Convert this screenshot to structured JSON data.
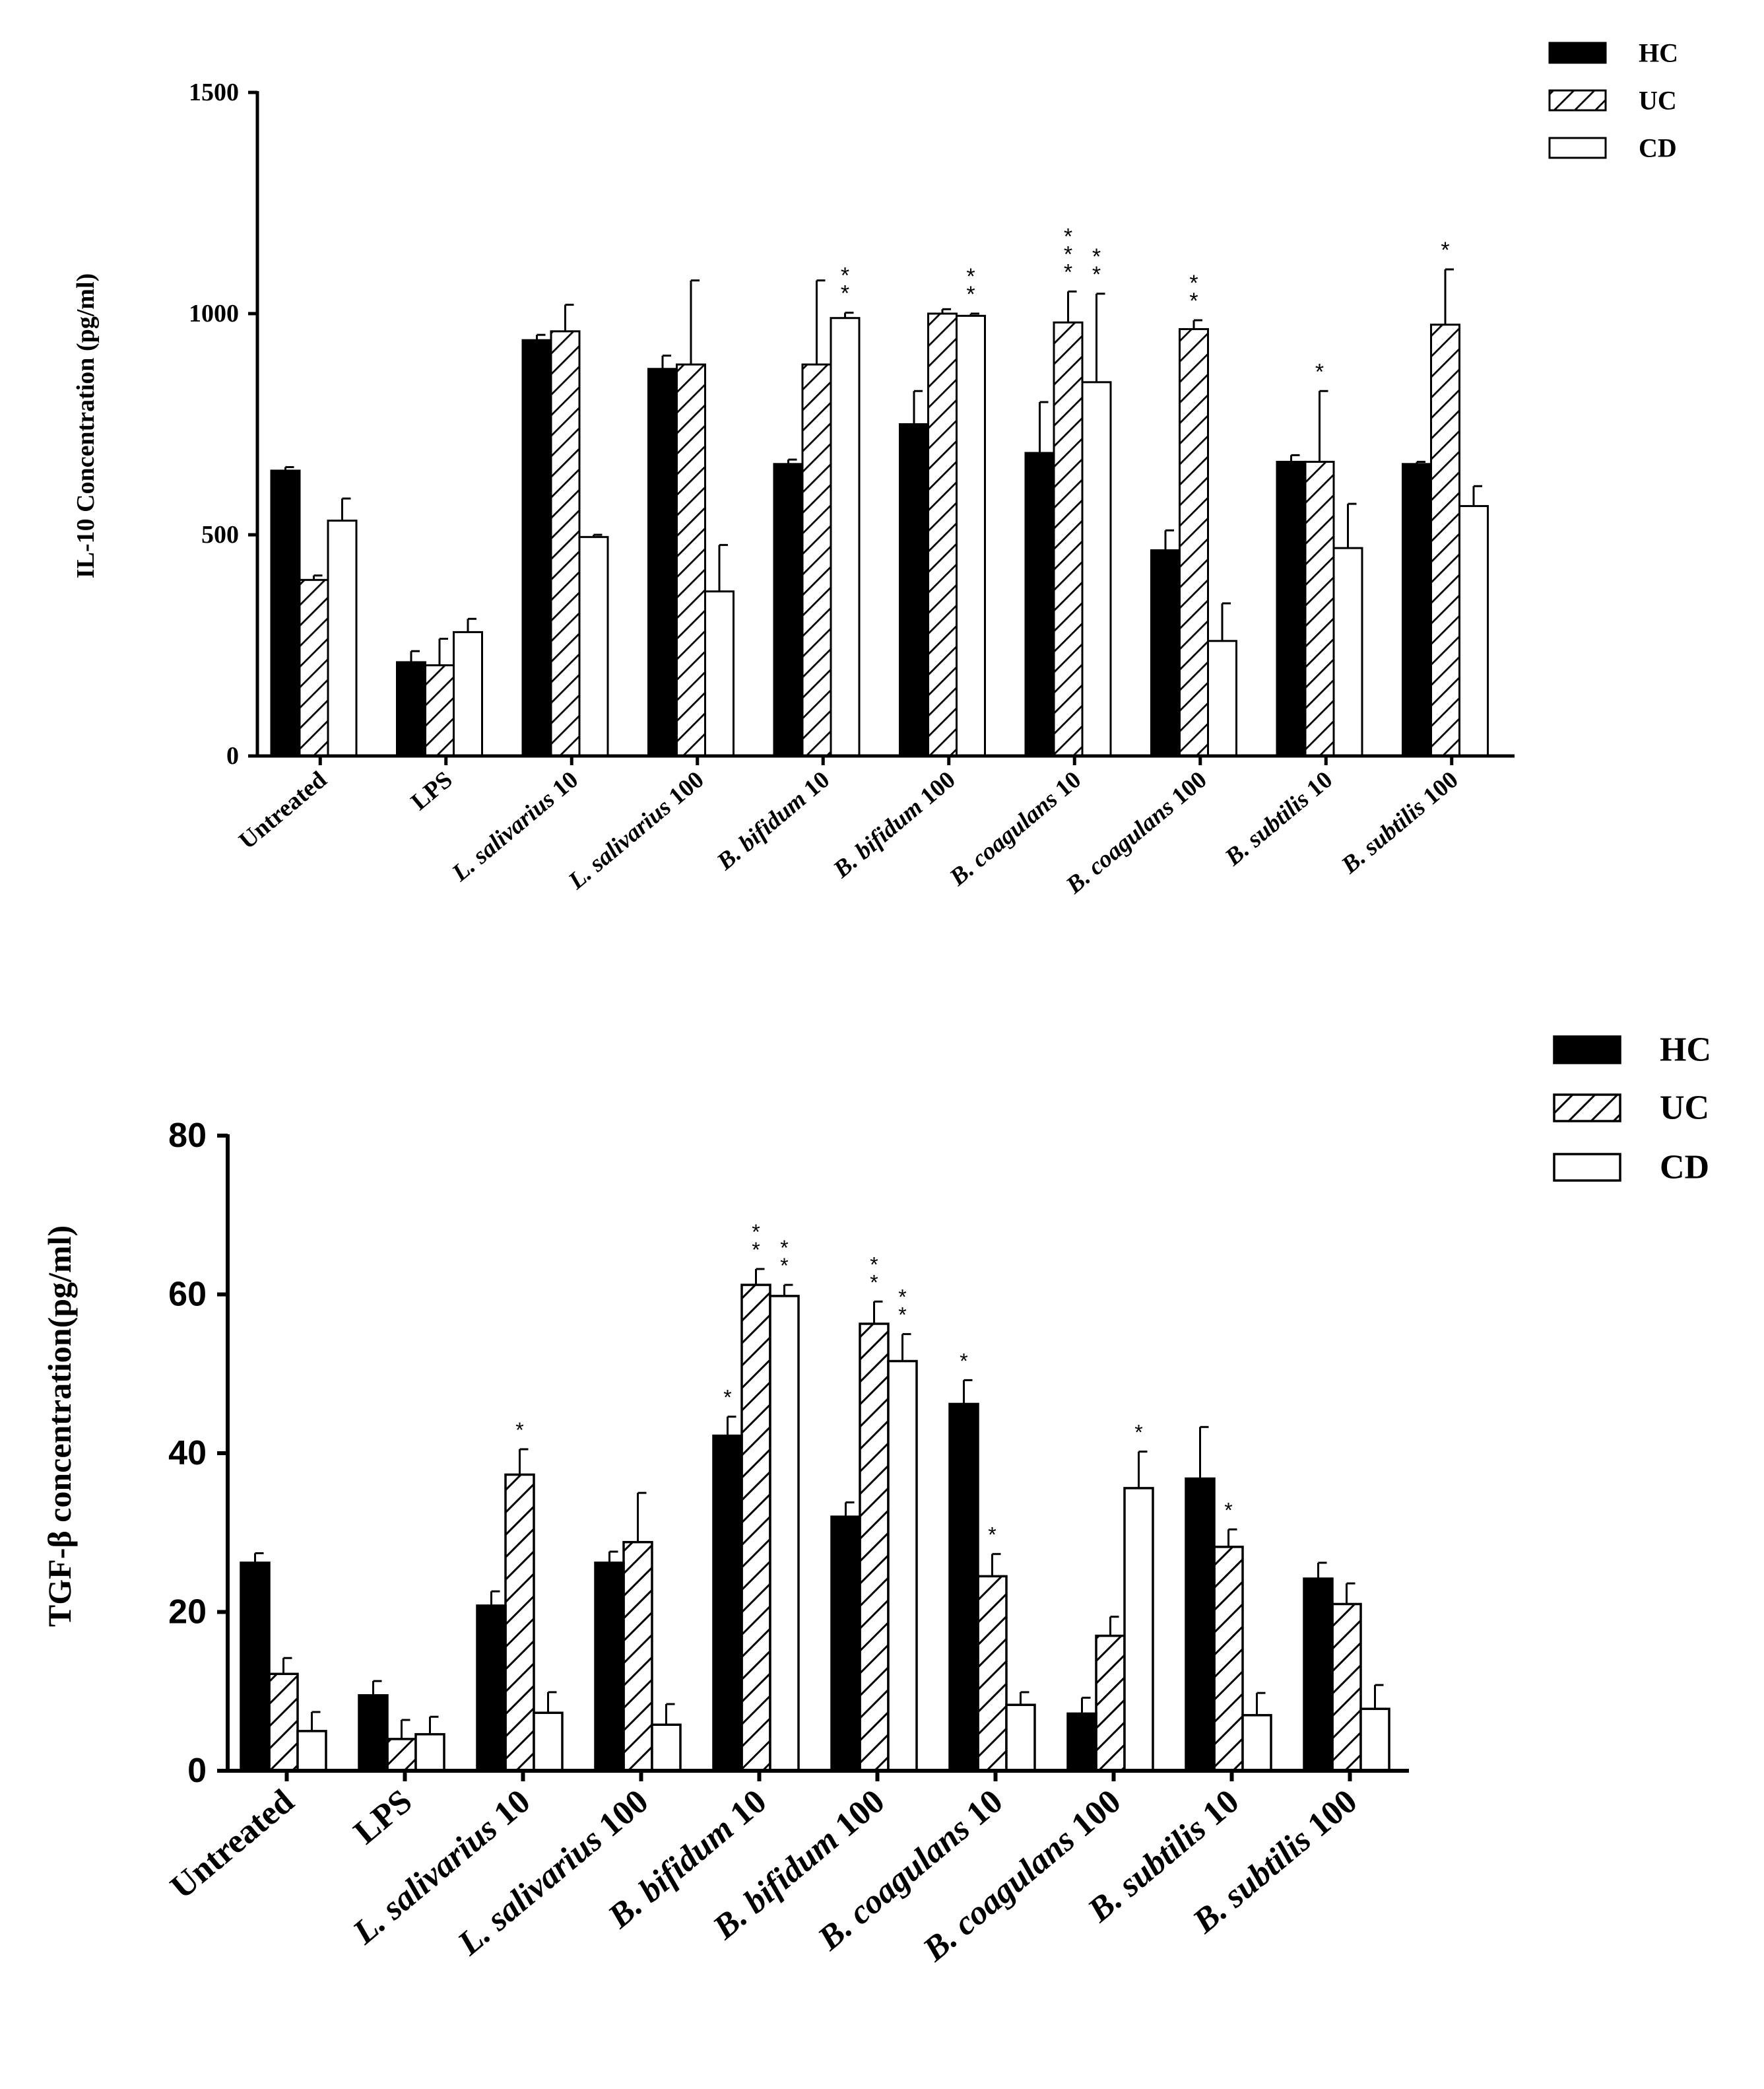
{
  "chart_data": [
    {
      "type": "bar",
      "title": "",
      "xlabel": "",
      "ylabel": "IL-10 Concentration (pg/ml)",
      "ylim": [
        0,
        1500
      ],
      "yticks": [
        "0",
        "500",
        "1000",
        "1500"
      ],
      "ytick_values": [
        0,
        500,
        1000,
        1500
      ],
      "legend_position": "top-right",
      "legend": [
        "HC",
        "UC",
        "CD"
      ],
      "categories": [
        [
          {
            "t": "Untreated",
            "i": false
          }
        ],
        [
          {
            "t": "LPS",
            "i": false
          }
        ],
        [
          {
            "t": "L. salivarius",
            "i": true
          },
          {
            "t": " 10",
            "i": false
          }
        ],
        [
          {
            "t": "L. salivarius",
            "i": true
          },
          {
            "t": " 100",
            "i": false
          }
        ],
        [
          {
            "t": "B. bifidum",
            "i": true
          },
          {
            "t": " 10",
            "i": false
          }
        ],
        [
          {
            "t": "B. bifidum",
            "i": true
          },
          {
            "t": " 100",
            "i": false
          }
        ],
        [
          {
            "t": "B. coagulans",
            "i": true
          },
          {
            "t": " 10",
            "i": false
          }
        ],
        [
          {
            "t": "B. coagulans",
            "i": true
          },
          {
            "t": " 100",
            "i": false
          }
        ],
        [
          {
            "t": "B. subtilis",
            "i": true
          },
          {
            "t": " 10",
            "i": false
          }
        ],
        [
          {
            "t": "B. subtilis",
            "i": true
          },
          {
            "t": " 100",
            "i": false
          }
        ]
      ],
      "series": [
        {
          "name": "HC",
          "pattern": "solid",
          "values": [
            645,
            212,
            940,
            875,
            660,
            750,
            685,
            465,
            665,
            660
          ],
          "errors": [
            8,
            25,
            12,
            30,
            10,
            75,
            115,
            45,
            15,
            5
          ],
          "stars": [
            "",
            "",
            "",
            "",
            "",
            "",
            "",
            "",
            "",
            ""
          ]
        },
        {
          "name": "UC",
          "pattern": "hatch",
          "values": [
            398,
            205,
            960,
            885,
            885,
            1000,
            980,
            965,
            665,
            975
          ],
          "errors": [
            10,
            60,
            60,
            190,
            190,
            10,
            70,
            20,
            160,
            125
          ],
          "stars": [
            "",
            "",
            "",
            "",
            "",
            "",
            "***",
            "**",
            "*",
            "*"
          ]
        },
        {
          "name": "CD",
          "pattern": "open",
          "values": [
            532,
            280,
            495,
            372,
            990,
            995,
            845,
            260,
            470,
            565
          ],
          "errors": [
            50,
            30,
            5,
            105,
            12,
            5,
            200,
            85,
            100,
            45
          ],
          "stars": [
            "",
            "",
            "",
            "",
            "**",
            "**",
            "**",
            "",
            "",
            ""
          ]
        }
      ]
    },
    {
      "type": "bar",
      "title": "",
      "xlabel": "",
      "ylabel": "TGF-β concentration(pg/ml)",
      "ylim": [
        0,
        80
      ],
      "yticks": [
        "0",
        "20",
        "40",
        "60",
        "80"
      ],
      "ytick_values": [
        0,
        20,
        40,
        60,
        80
      ],
      "legend_position": "top-right",
      "legend": [
        "HC",
        "UC",
        "CD"
      ],
      "categories": [
        [
          {
            "t": "Untreated",
            "i": false
          }
        ],
        [
          {
            "t": "LPS",
            "i": false
          }
        ],
        [
          {
            "t": "L. salivarius",
            "i": true
          },
          {
            "t": " 10",
            "i": false
          }
        ],
        [
          {
            "t": "L. salivarius",
            "i": true
          },
          {
            "t": " 100",
            "i": false
          }
        ],
        [
          {
            "t": "B. bifidum",
            "i": true
          },
          {
            "t": " 10",
            "i": false
          }
        ],
        [
          {
            "t": "B. bifidum",
            "i": true
          },
          {
            "t": " 100",
            "i": false
          }
        ],
        [
          {
            "t": "B. coagulans",
            "i": true
          },
          {
            "t": " 10",
            "i": false
          }
        ],
        [
          {
            "t": "B. coagulans",
            "i": true
          },
          {
            "t": " 100",
            "i": false
          }
        ],
        [
          {
            "t": "B. subtilis",
            "i": true
          },
          {
            "t": " 10",
            "i": false
          }
        ],
        [
          {
            "t": "B. subtilis",
            "i": true
          },
          {
            "t": " 100",
            "i": false
          }
        ]
      ],
      "series": [
        {
          "name": "HC",
          "pattern": "solid",
          "values": [
            26.2,
            9.5,
            20.8,
            26.2,
            42.2,
            32.0,
            46.2,
            7.2,
            36.8,
            24.2
          ],
          "errors": [
            1.2,
            1.8,
            1.8,
            1.4,
            2.4,
            1.8,
            3.0,
            2.0,
            6.5,
            2.0
          ],
          "stars": [
            "",
            "",
            "",
            "",
            "*",
            "",
            "*",
            "",
            "",
            ""
          ]
        },
        {
          "name": "UC",
          "pattern": "hatch",
          "values": [
            12.2,
            4.0,
            37.3,
            28.8,
            61.2,
            56.3,
            24.5,
            17.0,
            28.2,
            21.0
          ],
          "errors": [
            2.0,
            2.4,
            3.2,
            6.2,
            2.0,
            2.8,
            2.8,
            2.4,
            2.2,
            2.6
          ],
          "stars": [
            "",
            "",
            "*",
            "",
            "**",
            "**",
            "*",
            "",
            "*",
            ""
          ]
        },
        {
          "name": "CD",
          "pattern": "open",
          "values": [
            5.0,
            4.6,
            7.3,
            5.8,
            59.8,
            51.6,
            8.3,
            35.6,
            7.0,
            7.8
          ],
          "errors": [
            2.4,
            2.2,
            2.6,
            2.6,
            1.4,
            3.4,
            1.6,
            4.6,
            2.8,
            3.0
          ],
          "stars": [
            "",
            "",
            "",
            "",
            "**",
            "**",
            "",
            "*",
            "",
            ""
          ]
        }
      ]
    }
  ]
}
